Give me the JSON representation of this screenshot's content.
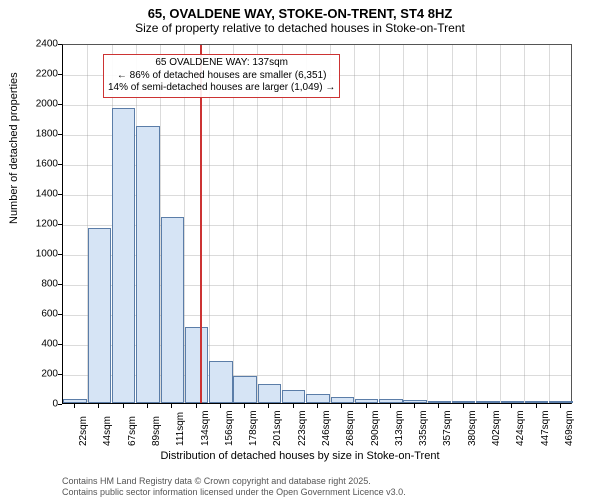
{
  "title": "65, OVALDENE WAY, STOKE-ON-TRENT, ST4 8HZ",
  "subtitle": "Size of property relative to detached houses in Stoke-on-Trent",
  "chart": {
    "type": "histogram",
    "y_label": "Number of detached properties",
    "x_label": "Distribution of detached houses by size in Stoke-on-Trent",
    "ylim": [
      0,
      2400
    ],
    "ytick_step": 200,
    "background_color": "#ffffff",
    "grid_color": "#999999",
    "bar_fill": "#d6e4f5",
    "bar_border": "#5b7da8",
    "x_ticks": [
      "22sqm",
      "44sqm",
      "67sqm",
      "89sqm",
      "111sqm",
      "134sqm",
      "156sqm",
      "178sqm",
      "201sqm",
      "223sqm",
      "246sqm",
      "268sqm",
      "290sqm",
      "313sqm",
      "335sqm",
      "357sqm",
      "380sqm",
      "402sqm",
      "424sqm",
      "447sqm",
      "469sqm"
    ],
    "values": [
      30,
      1170,
      1970,
      1850,
      1240,
      510,
      280,
      180,
      130,
      90,
      60,
      40,
      30,
      30,
      20,
      15,
      10,
      10,
      5,
      5,
      5
    ],
    "marker": {
      "position_sqm": 137,
      "color": "#cc3333",
      "callout_lines": [
        "65 OVALDENE WAY: 137sqm",
        "← 86% of detached houses are smaller (6,351)",
        "14% of semi-detached houses are larger (1,049) →"
      ]
    },
    "label_fontsize": 11,
    "tick_fontsize": 10
  },
  "footer": {
    "line1": "Contains HM Land Registry data © Crown copyright and database right 2025.",
    "line2": "Contains public sector information licensed under the Open Government Licence v3.0."
  }
}
